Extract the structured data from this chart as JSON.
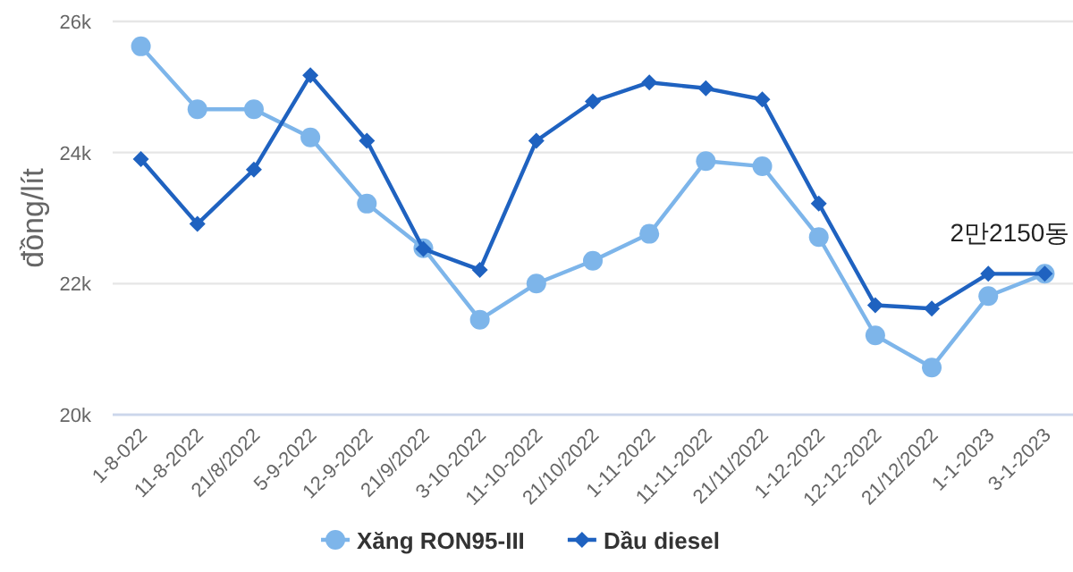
{
  "chart_data": {
    "type": "line",
    "ylabel": "đồng/lít",
    "categories": [
      "1-8-022",
      "11-8-2022",
      "21/8/2022",
      "5-9-2022",
      "12-9-2022",
      "21/9/2022",
      "3-10-2022",
      "11-10-2022",
      "21/10/2022",
      "1-11-2022",
      "11-11-2022",
      "21/11/2022",
      "1-12-2022",
      "12-12-2022",
      "21/12/2022",
      "1-1-2023",
      "3-1-2023"
    ],
    "series": [
      {
        "name": "Xăng RON95-III",
        "color": "#7db5ea",
        "marker": "circle",
        "values": [
          25620,
          24660,
          24660,
          24230,
          23220,
          22540,
          21450,
          22000,
          22350,
          22760,
          23870,
          23790,
          22710,
          21210,
          20720,
          21810,
          22150
        ]
      },
      {
        "name": "Dầu diesel",
        "color": "#1f62c0",
        "marker": "diamond",
        "values": [
          23900,
          22910,
          23740,
          25180,
          24180,
          22530,
          22210,
          24180,
          24780,
          25070,
          24980,
          24810,
          23220,
          21670,
          21620,
          22150,
          22150
        ]
      }
    ],
    "ylim": [
      20000,
      26000
    ],
    "yticks": [
      {
        "value": 20000,
        "label": "20k"
      },
      {
        "value": 22000,
        "label": "22k"
      },
      {
        "value": 24000,
        "label": "24k"
      },
      {
        "value": 26000,
        "label": "26k"
      }
    ],
    "grid": "y",
    "legend": "bottom",
    "line_style": "solid",
    "annotations": [
      {
        "text": "2만2150동",
        "x": "3-1-2023",
        "y": 22150
      }
    ]
  }
}
